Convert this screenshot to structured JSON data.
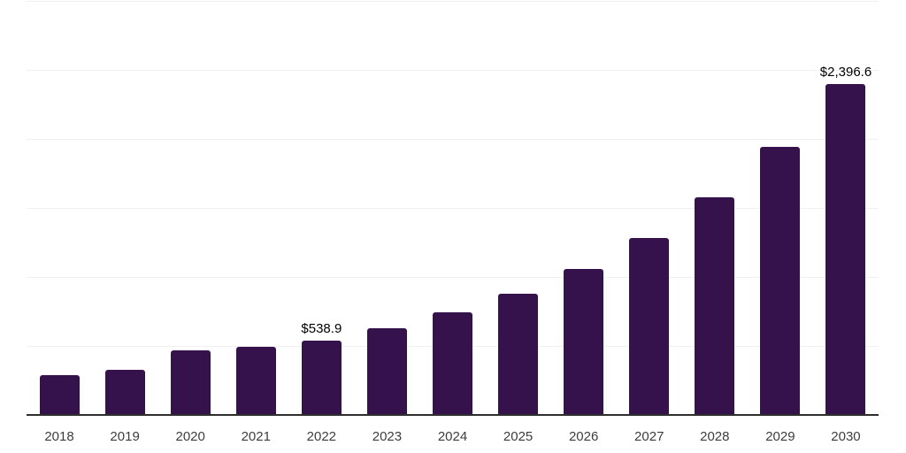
{
  "chart_data": {
    "type": "bar",
    "title": "",
    "xlabel": "",
    "ylabel": "",
    "categories": [
      "2018",
      "2019",
      "2020",
      "2021",
      "2022",
      "2023",
      "2024",
      "2025",
      "2026",
      "2027",
      "2028",
      "2029",
      "2030"
    ],
    "values": [
      290,
      327,
      468,
      494,
      538.9,
      630,
      745,
      880,
      1060,
      1285,
      1575,
      1945,
      2396.6
    ],
    "data_labels": [
      "",
      "",
      "",
      "",
      "$538.9",
      "",
      "",
      "",
      "",
      "",
      "",
      "",
      "$2,396.6"
    ],
    "labeled_values": {
      "2022": "$538.9",
      "2030": "$2,396.6"
    },
    "ylim": [
      0,
      3000
    ],
    "gridline_interval": 500,
    "grid": true,
    "legend_position": "none",
    "colors": {
      "bar": "#36124C",
      "gridline": "#f0f0f0",
      "axis_line": "#2e2e2e",
      "tick_label": "#3d3d3d",
      "data_label": "#000000",
      "background": "#ffffff"
    }
  }
}
